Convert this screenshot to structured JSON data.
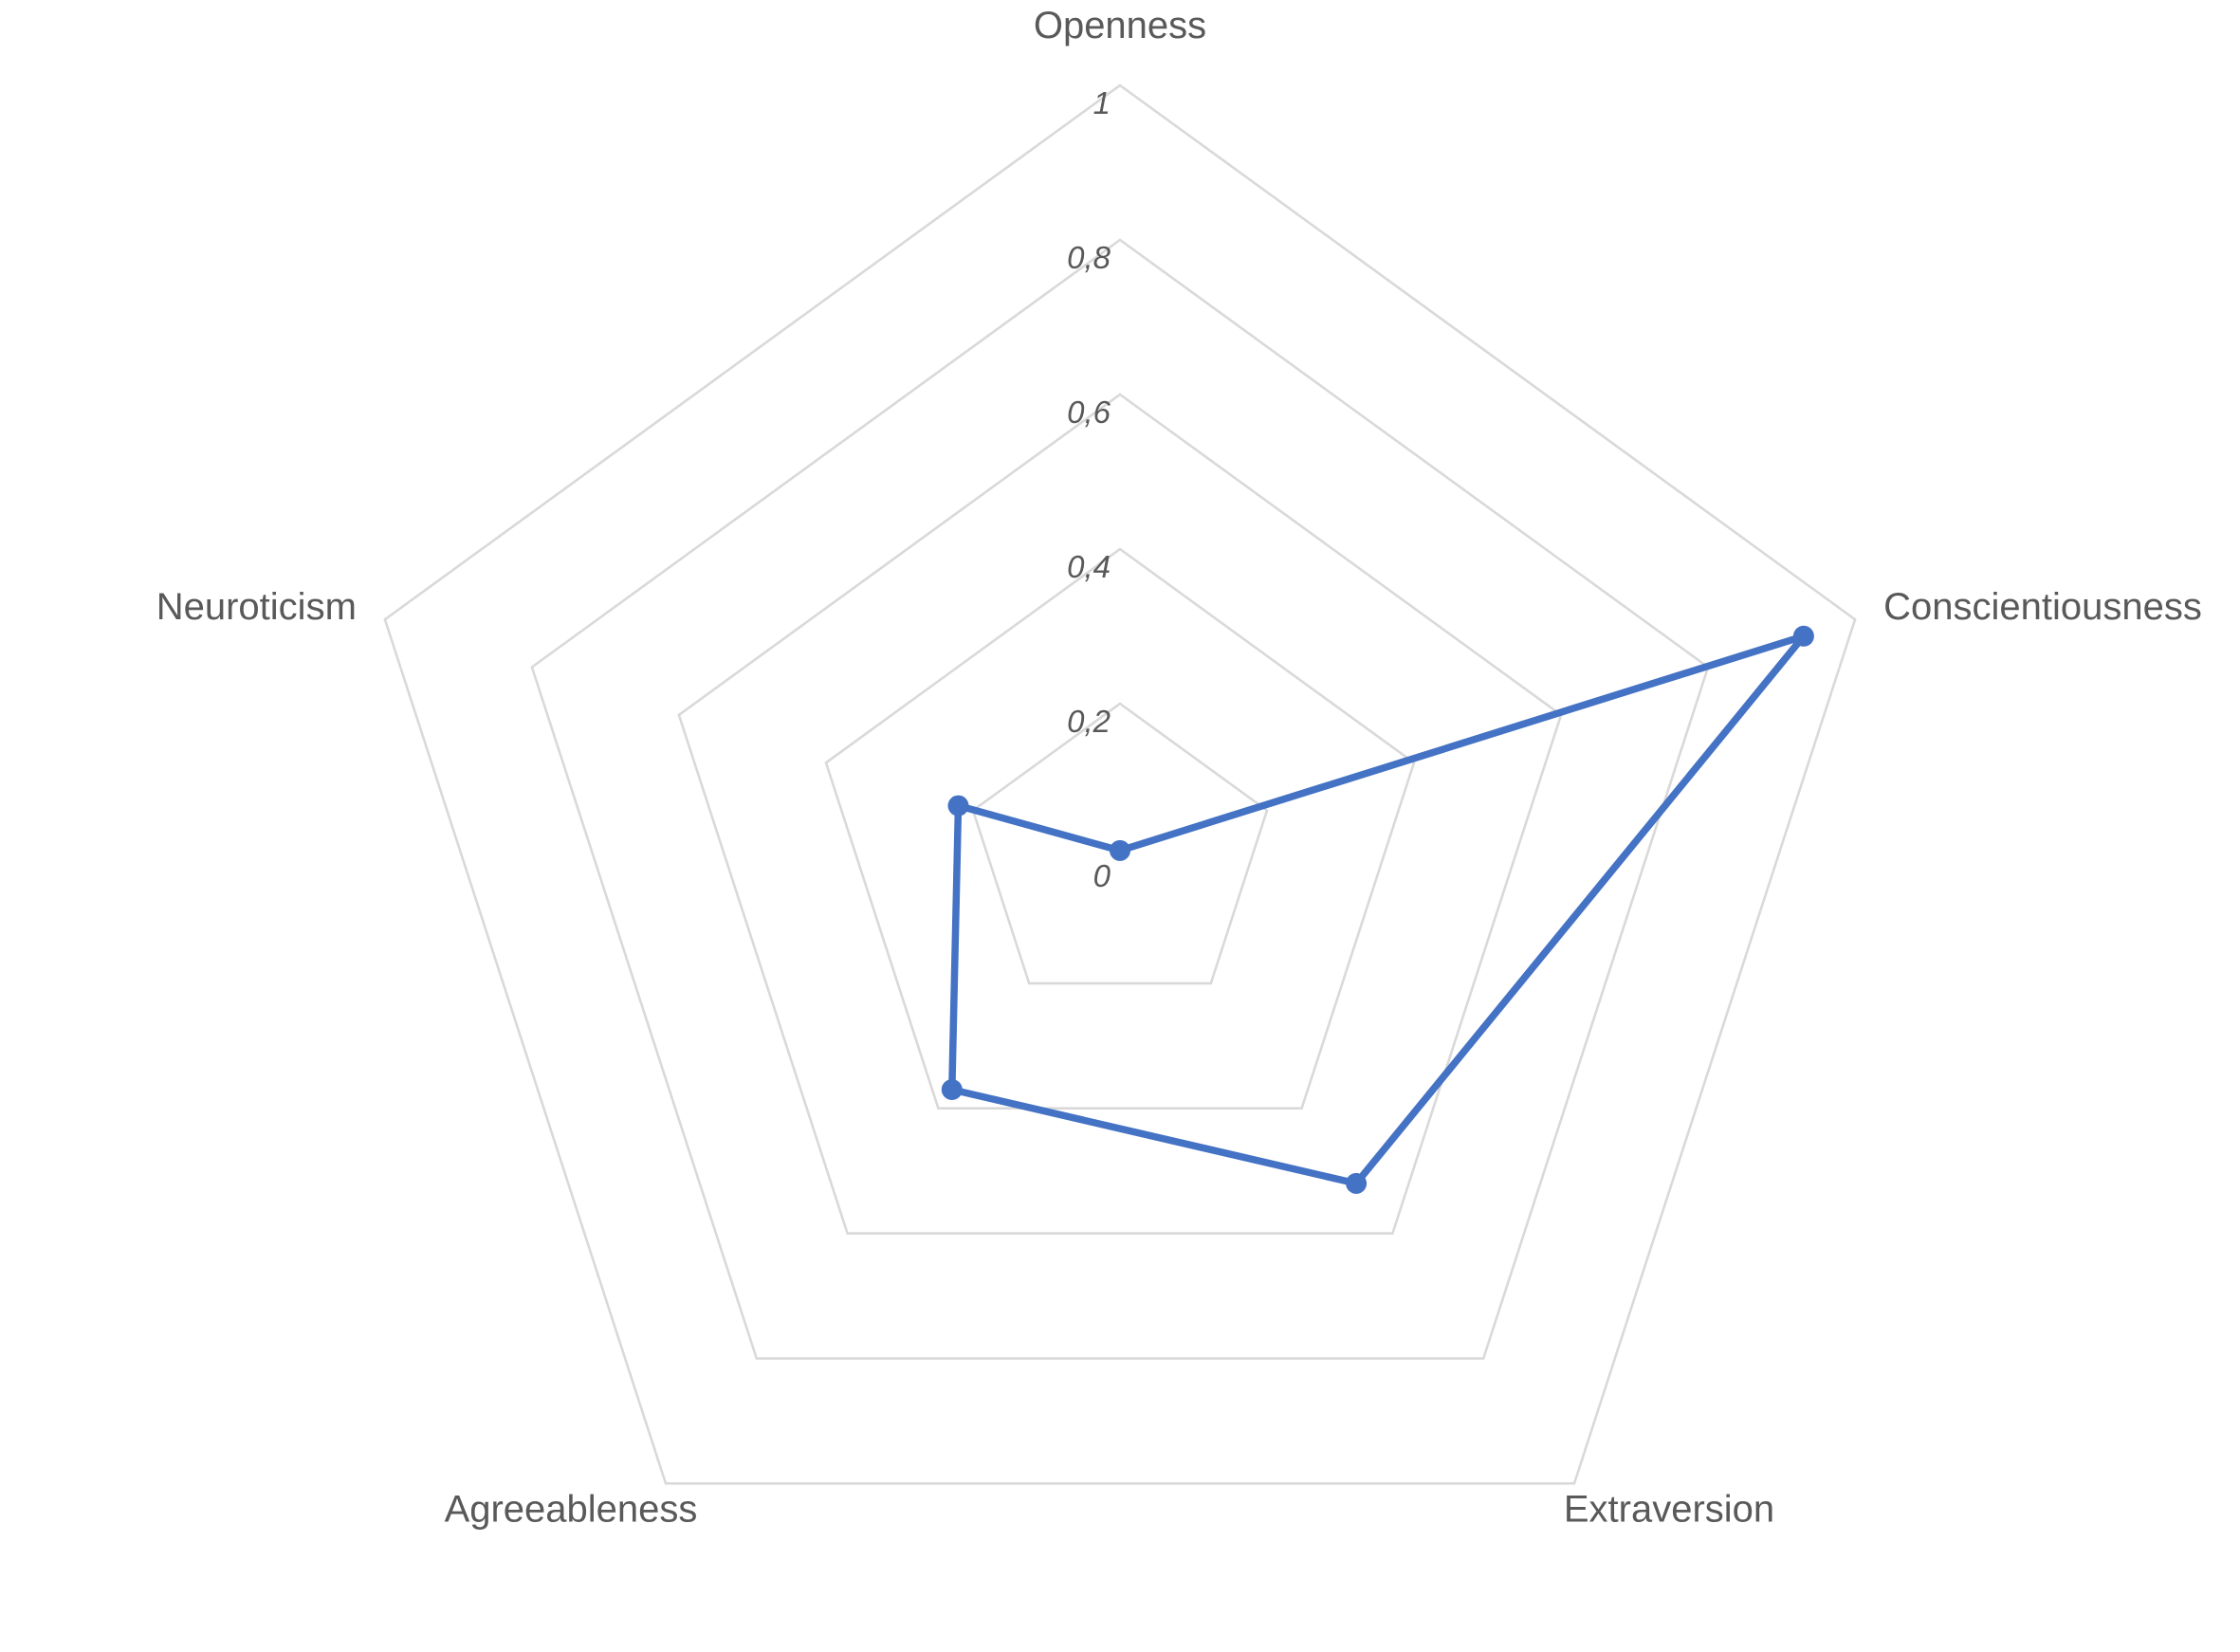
{
  "chart_data": {
    "type": "radar",
    "title": "",
    "categories": [
      "Openness",
      "Conscientiousness",
      "Extraversion",
      "Agreeableness",
      "Neuroticism"
    ],
    "series": [
      {
        "values": [
          0.01,
          0.93,
          0.52,
          0.37,
          0.22
        ],
        "color": "#4472C4"
      }
    ],
    "radial_axis": {
      "min": 0,
      "max": 1,
      "ticks": [
        "0",
        "0,2",
        "0,4",
        "0,6",
        "0,8",
        "1"
      ]
    },
    "grid": true,
    "grid_color": "#D9D9D9",
    "legend": "none"
  }
}
